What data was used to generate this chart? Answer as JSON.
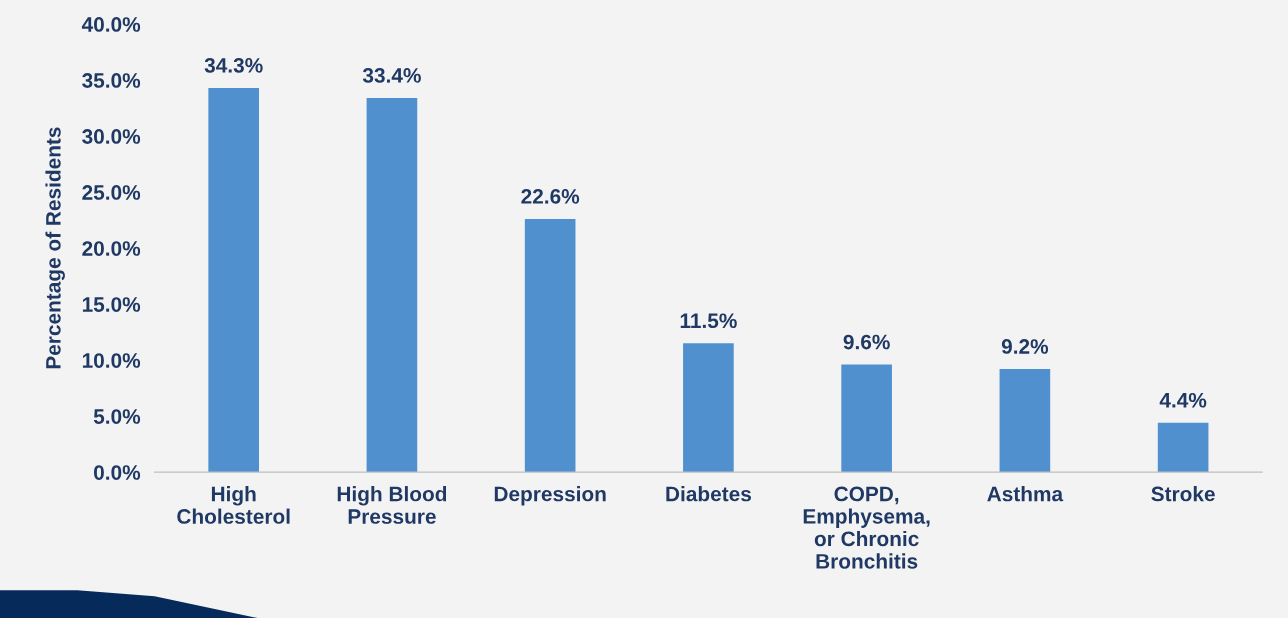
{
  "chart_data": {
    "type": "bar",
    "ylabel": "Percentage of Residents",
    "categories": [
      "High\nCholesterol",
      "High Blood\nPressure",
      "Depression",
      "Diabetes",
      "COPD,\nEmphysema,\nor Chronic\nBronchitis",
      "Asthma",
      "Stroke"
    ],
    "values": [
      34.3,
      33.4,
      22.6,
      11.5,
      9.6,
      9.2,
      4.4
    ],
    "value_labels": [
      "34.3%",
      "33.4%",
      "22.6%",
      "11.5%",
      "9.6%",
      "9.2%",
      "4.4%"
    ],
    "color": "#5190cf",
    "ylim": [
      0,
      40
    ],
    "yticks": [
      {
        "value": 0,
        "label": "0.0%"
      },
      {
        "value": 5,
        "label": "5.0%"
      },
      {
        "value": 10,
        "label": "10.0%"
      },
      {
        "value": 15,
        "label": "15.0%"
      },
      {
        "value": 20,
        "label": "20.0%"
      },
      {
        "value": 25,
        "label": "25.0%"
      },
      {
        "value": 30,
        "label": "30.0%"
      },
      {
        "value": 35,
        "label": "35.0%"
      },
      {
        "value": 40,
        "label": "40.0%"
      }
    ],
    "grid": false,
    "legend": false
  }
}
